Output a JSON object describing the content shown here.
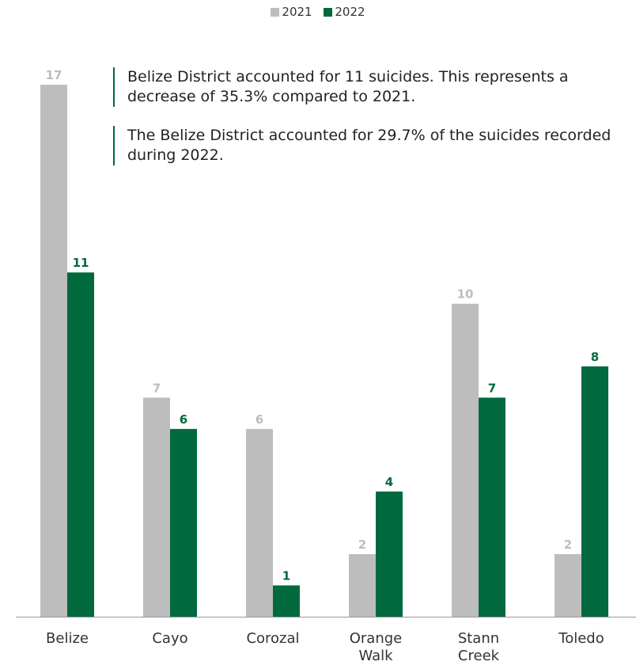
{
  "legend": {
    "items": [
      {
        "label": "2021",
        "color": "#bdbdbd"
      },
      {
        "label": "2022",
        "color": "#00693e"
      }
    ]
  },
  "notes": [
    "Belize District accounted for 11 suicides. This represents a decrease of 35.3% compared to 2021.",
    "The Belize District accounted for 29.7% of the suicides recorded during 2022."
  ],
  "chart_data": {
    "type": "bar",
    "categories": [
      [
        "Belize"
      ],
      [
        "Cayo"
      ],
      [
        "Corozal"
      ],
      [
        "Orange",
        "Walk"
      ],
      [
        "Stann",
        "Creek"
      ],
      [
        "Toledo"
      ]
    ],
    "series": [
      {
        "name": "2021",
        "color": "#bdbdbd",
        "label_color": "#bdbdbd",
        "values": [
          17,
          7,
          6,
          2,
          10,
          2
        ]
      },
      {
        "name": "2022",
        "color": "#00693e",
        "label_color": "#00693e",
        "values": [
          11,
          6,
          1,
          4,
          7,
          8
        ]
      }
    ],
    "ylim": [
      0,
      17
    ],
    "grid": false,
    "legend_position": "top-center"
  }
}
